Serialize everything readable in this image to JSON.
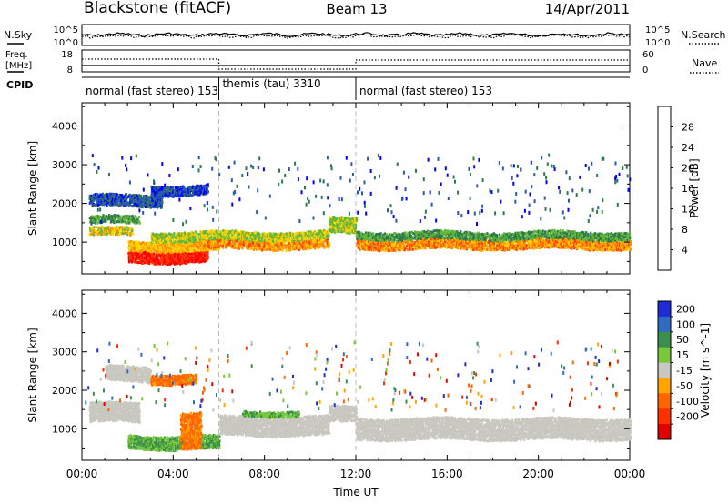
{
  "header": {
    "title": "Blackstone (fitACF)",
    "beam": "Beam 13",
    "date": "14/Apr/2011"
  },
  "top_panels": {
    "nsky_label": "N.Sky",
    "nsky_ticks": [
      "10^5",
      "10^0"
    ],
    "nsearch_label": "N.Search",
    "nsearch_ticks": [
      "10^5",
      "10^0"
    ],
    "freq_label": "Freq.",
    "freq_unit": "[MHz]",
    "freq_ticks": [
      "18",
      "8"
    ],
    "nave_label": "Nave",
    "nave_ticks": [
      "60",
      "0"
    ],
    "cpid_label": "CPID",
    "cpid_segments": [
      {
        "label": "normal (fast stereo) 153",
        "start": 0,
        "end": 6
      },
      {
        "label": "themis (tau) 3310",
        "start": 6,
        "end": 12
      },
      {
        "label": "normal (fast stereo) 153",
        "start": 12,
        "end": 24
      }
    ]
  },
  "xaxis": {
    "label": "Time UT",
    "ticks": [
      "00:00",
      "04:00",
      "08:00",
      "12:00",
      "16:00",
      "20:00",
      "00:00"
    ]
  },
  "colors": {
    "power_scale": [
      "#0000ff",
      "#2a5aa8",
      "#2f7a4a",
      "#62b63a",
      "#ffd000",
      "#ff9000",
      "#ff3c00",
      "#ff0000"
    ],
    "velocity_scale": [
      "#1f2bd6",
      "#2f6bbf",
      "#3a8f4c",
      "#77c83a",
      "#c8c8c0",
      "#ffa500",
      "#ff6600",
      "#ff3000",
      "#e00000"
    ]
  },
  "chart_data": [
    {
      "type": "heatmap",
      "title": "",
      "xlabel": "Time UT",
      "ylabel": "Slant Range [km]",
      "xlim": [
        0,
        24
      ],
      "ylim": [
        180,
        4600
      ],
      "yticks": [
        1000,
        2000,
        3000,
        4000
      ],
      "colorbar": {
        "label": "Power [dB]",
        "ticks": [
          4,
          8,
          12,
          16,
          20,
          24,
          28
        ],
        "range": [
          0,
          32
        ]
      },
      "bands": [
        {
          "t0": 0.3,
          "t1": 2.2,
          "r0": 1150,
          "r1": 1350,
          "power": 18
        },
        {
          "t0": 0.3,
          "t1": 2.5,
          "r0": 1450,
          "r1": 1650,
          "power": 12
        },
        {
          "t0": 2.0,
          "t1": 5.5,
          "r0": 450,
          "r1": 750,
          "power": 28
        },
        {
          "t0": 2.0,
          "t1": 6.0,
          "r0": 750,
          "r1": 1000,
          "power": 20
        },
        {
          "t0": 3.0,
          "t1": 10.8,
          "r0": 1000,
          "r1": 1250,
          "power": 16
        },
        {
          "t0": 5.0,
          "t1": 10.8,
          "r0": 800,
          "r1": 1000,
          "power": 22
        },
        {
          "t0": 10.8,
          "t1": 12.0,
          "r0": 1200,
          "r1": 1600,
          "power": 16
        },
        {
          "t0": 12.0,
          "t1": 24.0,
          "r0": 800,
          "r1": 1050,
          "power": 22
        },
        {
          "t0": 12.0,
          "t1": 24.0,
          "r0": 1050,
          "r1": 1250,
          "power": 12
        },
        {
          "t0": 0.3,
          "t1": 3.5,
          "r0": 1900,
          "r1": 2200,
          "power": 6
        },
        {
          "t0": 3.0,
          "t1": 5.5,
          "r0": 2200,
          "r1": 2450,
          "power": 5
        }
      ]
    },
    {
      "type": "heatmap",
      "title": "",
      "xlabel": "Time UT",
      "ylabel": "Slant Range [km]",
      "xlim": [
        0,
        24
      ],
      "ylim": [
        180,
        4600
      ],
      "yticks": [
        1000,
        2000,
        3000,
        4000
      ],
      "colorbar": {
        "label": "Velocity [m s^-1]",
        "ticks": [
          200,
          100,
          50,
          15,
          -15,
          -50,
          -100,
          -200
        ]
      },
      "bands": [
        {
          "t0": 0.3,
          "t1": 2.5,
          "r0": 1150,
          "r1": 1400,
          "velocity": 0
        },
        {
          "t0": 0.3,
          "t1": 2.5,
          "r0": 1400,
          "r1": 1650,
          "velocity": 0
        },
        {
          "t0": 2.0,
          "t1": 6.0,
          "r0": 450,
          "r1": 800,
          "velocity": 30
        },
        {
          "t0": 4.3,
          "t1": 5.2,
          "r0": 450,
          "r1": 1400,
          "velocity": -40
        },
        {
          "t0": 6.0,
          "t1": 10.8,
          "r0": 800,
          "r1": 1300,
          "velocity": 0
        },
        {
          "t0": 7.0,
          "t1": 9.5,
          "r0": 1300,
          "r1": 1450,
          "velocity": 30
        },
        {
          "t0": 10.8,
          "t1": 12.0,
          "r0": 1150,
          "r1": 1550,
          "velocity": 0
        },
        {
          "t0": 12.0,
          "t1": 24.0,
          "r0": 700,
          "r1": 1250,
          "velocity": 0
        },
        {
          "t0": 1.0,
          "t1": 3.0,
          "r0": 2200,
          "r1": 2600,
          "velocity": 0
        },
        {
          "t0": 3.0,
          "t1": 5.0,
          "r0": 2150,
          "r1": 2400,
          "velocity": -40
        }
      ]
    }
  ]
}
